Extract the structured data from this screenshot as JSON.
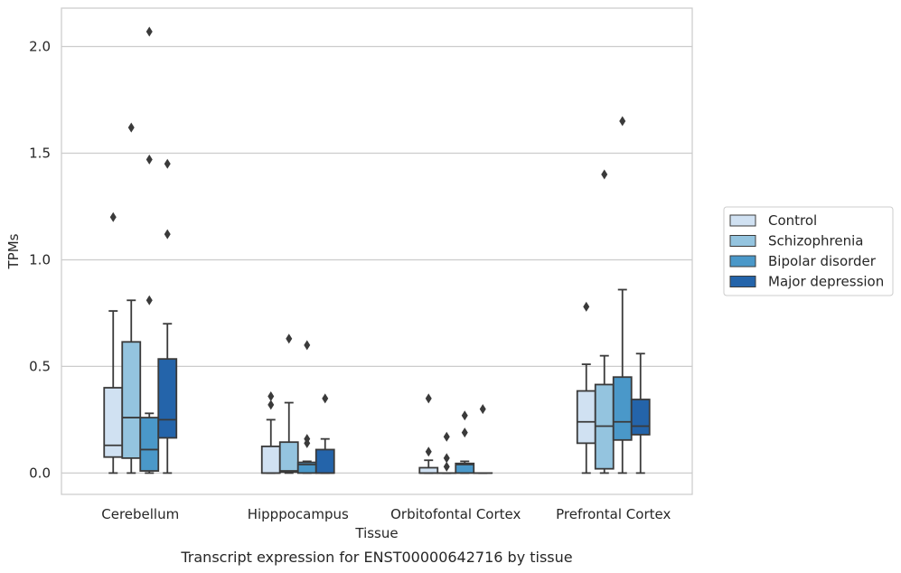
{
  "chart_data": {
    "type": "box",
    "title": "Transcript expression for ENST00000642716 by tissue",
    "xlabel": "Tissue",
    "ylabel": "TPMs",
    "ylim": [
      -0.1,
      2.18
    ],
    "yticks": [
      "0.0",
      "0.5",
      "1.0",
      "1.5",
      "2.0"
    ],
    "grid": true,
    "legend_position": "right",
    "categories": [
      "Cerebellum",
      "Hipppocampus",
      "Orbitofontal Cortex",
      "Prefrontal Cortex"
    ],
    "series": [
      {
        "name": "Control",
        "color": "#d0e1f2",
        "boxes": [
          {
            "whislo": 0.0,
            "q1": 0.075,
            "med": 0.13,
            "q3": 0.4,
            "whishi": 0.76,
            "fliers": [
              1.2
            ]
          },
          {
            "whislo": 0.0,
            "q1": 0.0,
            "med": 0.0,
            "q3": 0.125,
            "whishi": 0.25,
            "fliers": [
              0.32,
              0.36
            ]
          },
          {
            "whislo": 0.0,
            "q1": 0.0,
            "med": 0.0,
            "q3": 0.025,
            "whishi": 0.06,
            "fliers": [
              0.1,
              0.35
            ]
          },
          {
            "whislo": 0.0,
            "q1": 0.14,
            "med": 0.24,
            "q3": 0.385,
            "whishi": 0.51,
            "fliers": [
              0.78
            ]
          }
        ]
      },
      {
        "name": "Schizophrenia",
        "color": "#94c4df",
        "boxes": [
          {
            "whislo": 0.0,
            "q1": 0.07,
            "med": 0.26,
            "q3": 0.615,
            "whishi": 0.81,
            "fliers": [
              1.62
            ]
          },
          {
            "whislo": 0.0,
            "q1": 0.005,
            "med": 0.01,
            "q3": 0.145,
            "whishi": 0.33,
            "fliers": [
              0.63
            ]
          },
          {
            "whislo": 0.0,
            "q1": 0.0,
            "med": 0.0,
            "q3": 0.0,
            "whishi": 0.0,
            "fliers": [
              0.03,
              0.07,
              0.17
            ]
          },
          {
            "whislo": 0.0,
            "q1": 0.02,
            "med": 0.22,
            "q3": 0.415,
            "whishi": 0.55,
            "fliers": [
              1.4
            ]
          }
        ]
      },
      {
        "name": "Bipolar disorder",
        "color": "#4a98c9",
        "boxes": [
          {
            "whislo": 0.0,
            "q1": 0.01,
            "med": 0.11,
            "q3": 0.26,
            "whishi": 0.28,
            "fliers": [
              0.81,
              1.47,
              2.07
            ]
          },
          {
            "whislo": 0.0,
            "q1": 0.0,
            "med": 0.04,
            "q3": 0.05,
            "whishi": 0.055,
            "fliers": [
              0.14,
              0.16,
              0.6
            ]
          },
          {
            "whislo": 0.0,
            "q1": 0.0,
            "med": 0.04,
            "q3": 0.045,
            "whishi": 0.055,
            "fliers": [
              0.19,
              0.27
            ]
          },
          {
            "whislo": 0.0,
            "q1": 0.155,
            "med": 0.24,
            "q3": 0.45,
            "whishi": 0.86,
            "fliers": [
              1.65
            ]
          }
        ]
      },
      {
        "name": "Major depression",
        "color": "#2464aa",
        "boxes": [
          {
            "whislo": 0.0,
            "q1": 0.165,
            "med": 0.25,
            "q3": 0.535,
            "whishi": 0.7,
            "fliers": [
              1.12,
              1.45
            ]
          },
          {
            "whislo": 0.0,
            "q1": 0.0,
            "med": 0.0,
            "q3": 0.11,
            "whishi": 0.16,
            "fliers": [
              0.35
            ]
          },
          {
            "whislo": 0.0,
            "q1": 0.0,
            "med": 0.0,
            "q3": 0.0,
            "whishi": 0.0,
            "fliers": [
              0.3
            ]
          },
          {
            "whislo": 0.0,
            "q1": 0.18,
            "med": 0.22,
            "q3": 0.345,
            "whishi": 0.56,
            "fliers": []
          }
        ]
      }
    ]
  }
}
